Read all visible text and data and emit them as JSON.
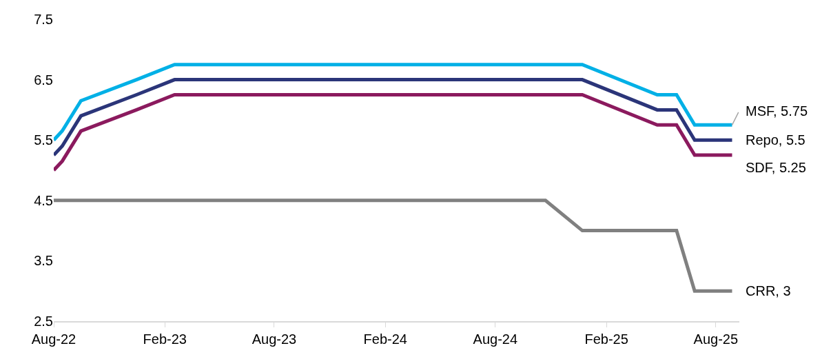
{
  "chart_data": {
    "type": "line",
    "xlim": [
      "2022-08-01",
      "2025-09-09"
    ],
    "ylim": [
      2.5,
      7.5
    ],
    "yticks": [
      2.5,
      3.5,
      4.5,
      5.5,
      6.5,
      7.5
    ],
    "xticks": [
      {
        "value": "2022-08-01",
        "label": "Aug-22"
      },
      {
        "value": "2023-02-01",
        "label": "Feb-23"
      },
      {
        "value": "2023-08-01",
        "label": "Aug-23"
      },
      {
        "value": "2024-02-01",
        "label": "Feb-24"
      },
      {
        "value": "2024-08-01",
        "label": "Aug-24"
      },
      {
        "value": "2025-02-01",
        "label": "Feb-25"
      },
      {
        "value": "2025-08-01",
        "label": "Aug-25"
      }
    ],
    "marker": "none",
    "line_style": "solid",
    "series": [
      {
        "color": "#00b0e6",
        "x": [
          "2022-08-01",
          "2022-08-15",
          "2022-09-15",
          "2022-12-16",
          "2023-02-17",
          "2024-12-23",
          "2025-04-26",
          "2025-05-28",
          "2025-06-27",
          "2025-08-28"
        ],
        "values": [
          5.5,
          5.65,
          6.15,
          6.5,
          6.75,
          6.75,
          6.25,
          6.25,
          5.75,
          5.75
        ]
      },
      {
        "color": "#2b3579",
        "x": [
          "2022-08-01",
          "2022-08-15",
          "2022-09-15",
          "2022-12-16",
          "2023-02-17",
          "2024-12-23",
          "2025-04-26",
          "2025-05-28",
          "2025-06-27",
          "2025-08-28"
        ],
        "values": [
          5.25,
          5.4,
          5.9,
          6.25,
          6.5,
          6.5,
          6.0,
          6.0,
          5.5,
          5.5
        ]
      },
      {
        "color": "#8b1a5e",
        "x": [
          "2022-08-01",
          "2022-08-15",
          "2022-09-15",
          "2022-12-16",
          "2023-02-17",
          "2024-12-23",
          "2025-04-26",
          "2025-05-28",
          "2025-06-27",
          "2025-08-28"
        ],
        "values": [
          5.0,
          5.15,
          5.65,
          6.0,
          6.25,
          6.25,
          5.75,
          5.75,
          5.25,
          5.25
        ]
      },
      {
        "color": "#808080",
        "x": [
          "2022-08-01",
          "2024-10-23",
          "2024-12-23",
          "2025-05-28",
          "2025-06-27",
          "2025-08-28"
        ],
        "values": [
          4.5,
          4.5,
          4.0,
          4.0,
          3,
          3
        ]
      }
    ],
    "annotations": [
      {
        "text": "MSF, 5.75",
        "x": "2025-08-28",
        "y": 5.75
      },
      {
        "text": "Repo, 5.5",
        "x": "2025-08-28",
        "y": 5.5
      },
      {
        "text": "SDF, 5.25",
        "x": "2025-08-28",
        "y": 5.25
      },
      {
        "text": "CRR, 3",
        "x": "2025-08-28",
        "y": 3
      }
    ]
  }
}
